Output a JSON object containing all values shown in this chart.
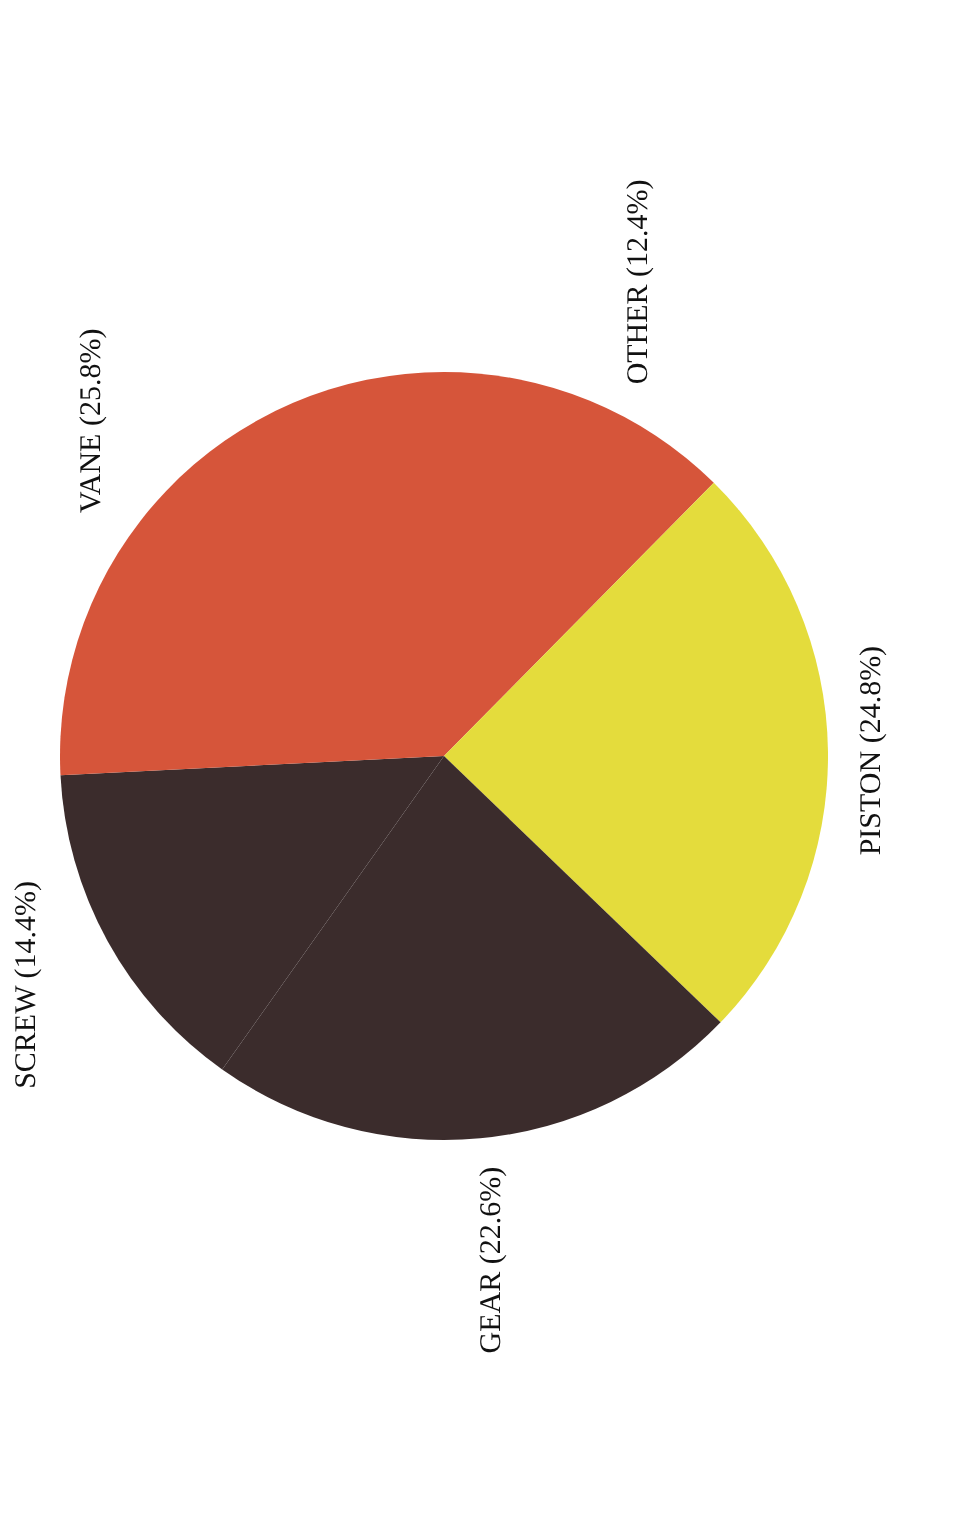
{
  "chart_data": {
    "type": "pie",
    "categories": [
      "OTHER",
      "PISTON",
      "GEAR",
      "SCREW",
      "VANE"
    ],
    "values": [
      12.4,
      24.8,
      22.6,
      14.4,
      25.8
    ],
    "value_labels": [
      "(12.4%)",
      "(24.8%)",
      "(22.6%)",
      "(14.4%)",
      "(25.8%)"
    ],
    "colors": [
      "#d6553a",
      "#e4dc3c",
      "#3b2c2c",
      "#3b2c2c",
      "#d6553a"
    ],
    "legend": false
  }
}
